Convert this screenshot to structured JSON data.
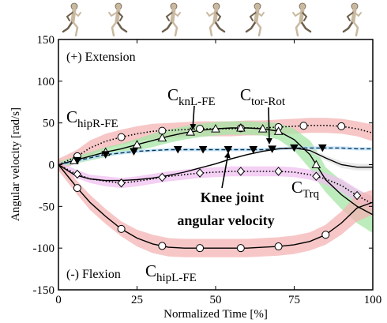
{
  "chart_data": {
    "type": "line",
    "xlabel": "Normalized Time [%]",
    "ylabel": "Angular velocity [rad/s]",
    "xlim": [
      0,
      100
    ],
    "ylim": [
      -150,
      150
    ],
    "xticks": [
      0,
      25,
      50,
      75,
      100
    ],
    "yticks": [
      -150,
      -100,
      -50,
      0,
      50,
      100,
      150
    ],
    "grid": false,
    "annotations": {
      "extension": "(+) Extension",
      "flexion": "(-) Flexion",
      "knee": [
        "Knee joint",
        "angular velocity"
      ]
    },
    "curve_labels": {
      "hipR": {
        "base": "C",
        "sub": "hipR-FE"
      },
      "knL": {
        "base": "C",
        "sub": "knL-FE"
      },
      "tor": {
        "base": "C",
        "sub": "tor-Rot"
      },
      "trq": {
        "base": "C",
        "sub": "Trq"
      },
      "hipL": {
        "base": "C",
        "sub": "hipL-FE"
      }
    },
    "series": [
      {
        "key": "hipR",
        "color": "#000000",
        "band": "#f4b4b4",
        "style": "dotted",
        "marker": "circle",
        "x": [
          0,
          6,
          10,
          15,
          20,
          25,
          30,
          35,
          40,
          45,
          50,
          55,
          60,
          65,
          70,
          75,
          80,
          85,
          90,
          95,
          100
        ],
        "y": [
          0,
          10,
          20,
          28,
          33,
          37,
          40,
          41,
          42,
          43,
          43,
          43,
          44,
          44,
          45,
          46,
          47,
          47,
          46,
          43,
          38
        ],
        "lower": [
          -7,
          2,
          11,
          19,
          24,
          28,
          31,
          32,
          33,
          34,
          34,
          34,
          35,
          35,
          36,
          37,
          38,
          38,
          37,
          34,
          28
        ],
        "upper": [
          7,
          18,
          29,
          37,
          42,
          46,
          49,
          50,
          51,
          52,
          52,
          52,
          53,
          53,
          54,
          55,
          56,
          56,
          55,
          52,
          48
        ],
        "markers_x": [
          6,
          20,
          33,
          45,
          58,
          70,
          78,
          90
        ]
      },
      {
        "key": "knL",
        "color": "#000000",
        "band": "#a6e6a6",
        "style": "solid",
        "marker": "triangle-up",
        "x": [
          0,
          5,
          10,
          15,
          20,
          25,
          30,
          35,
          40,
          45,
          50,
          55,
          60,
          65,
          70,
          75,
          80,
          82,
          85,
          90,
          95,
          100
        ],
        "y": [
          0,
          5,
          10,
          15,
          19,
          24,
          29,
          34,
          38,
          41,
          43,
          44,
          44,
          43,
          40,
          30,
          12,
          0,
          -18,
          -36,
          -50,
          -60
        ],
        "lower": [
          -4,
          1,
          5,
          9,
          13,
          17,
          21,
          26,
          30,
          33,
          35,
          36,
          36,
          35,
          30,
          17,
          -5,
          -18,
          -33,
          -53,
          -70,
          -82
        ],
        "upper": [
          4,
          9,
          15,
          21,
          25,
          31,
          37,
          42,
          46,
          49,
          51,
          52,
          52,
          51,
          50,
          43,
          29,
          18,
          -3,
          -19,
          -30,
          -38
        ],
        "markers_x": [
          5,
          15,
          25,
          33,
          42,
          50,
          58,
          65,
          70,
          82
        ]
      },
      {
        "key": "tor",
        "color": "#000000",
        "band": "#bfe0ff",
        "style": "dashed",
        "marker": "triangle-down",
        "x": [
          0,
          5,
          10,
          15,
          20,
          25,
          30,
          35,
          40,
          45,
          50,
          55,
          60,
          65,
          70,
          75,
          80,
          85,
          90,
          95,
          100
        ],
        "y": [
          0,
          4,
          8,
          12,
          14,
          16,
          17,
          18,
          18,
          18,
          18,
          18,
          18,
          18,
          19,
          20,
          20,
          20,
          20,
          19,
          19
        ],
        "lower": [
          -2,
          2,
          6,
          10,
          12,
          14,
          15,
          16,
          16,
          16,
          16,
          16,
          16,
          16,
          17,
          18,
          18,
          18,
          18,
          17,
          17
        ],
        "upper": [
          2,
          6,
          10,
          14,
          16,
          18,
          19,
          20,
          20,
          20,
          20,
          20,
          20,
          20,
          21,
          22,
          22,
          22,
          22,
          21,
          21
        ],
        "markers_x": [
          6,
          15,
          24,
          38,
          46,
          54,
          62,
          68,
          75,
          84
        ]
      },
      {
        "key": "trq",
        "color": "#000000",
        "band": "#e3e3e3",
        "style": "solid",
        "marker": "none",
        "x": [
          0,
          5,
          10,
          15,
          20,
          25,
          30,
          35,
          40,
          45,
          50,
          55,
          60,
          65,
          70,
          75,
          80,
          85,
          90,
          95,
          100
        ],
        "y": [
          0,
          -12,
          -17,
          -19,
          -19,
          -18,
          -16,
          -13,
          -9,
          -4,
          1,
          7,
          12,
          16,
          19,
          20,
          17,
          8,
          0,
          -3,
          -3
        ],
        "lower": [
          -1,
          -13,
          -18,
          -20,
          -20,
          -19,
          -17,
          -14,
          -10,
          -5,
          0,
          6,
          11,
          15,
          18,
          19,
          15,
          5,
          -4,
          -7,
          -7
        ],
        "upper": [
          1,
          -11,
          -16,
          -18,
          -18,
          -17,
          -15,
          -12,
          -8,
          -3,
          2,
          8,
          13,
          17,
          20,
          21,
          19,
          11,
          4,
          1,
          1
        ]
      },
      {
        "key": "knee",
        "color": "#000000",
        "band": "#f0c0f0",
        "style": "dotted",
        "marker": "diamond",
        "x": [
          0,
          5,
          10,
          15,
          20,
          25,
          30,
          35,
          40,
          45,
          50,
          55,
          60,
          65,
          70,
          75,
          80,
          85,
          90,
          95,
          100
        ],
        "y": [
          0,
          -10,
          -17,
          -20,
          -22,
          -20,
          -17,
          -14,
          -12,
          -10,
          -9,
          -8,
          -8,
          -8,
          -8,
          -9,
          -12,
          -17,
          -25,
          -37,
          -47
        ],
        "lower": [
          -4,
          -15,
          -22,
          -26,
          -28,
          -26,
          -23,
          -20,
          -18,
          -16,
          -15,
          -14,
          -14,
          -14,
          -14,
          -15,
          -18,
          -24,
          -33,
          -45,
          -55
        ],
        "upper": [
          4,
          -5,
          -12,
          -14,
          -16,
          -14,
          -11,
          -8,
          -6,
          -4,
          -3,
          -2,
          -2,
          -2,
          -2,
          -3,
          -6,
          -10,
          -17,
          -29,
          -39
        ],
        "markers_x": [
          6,
          20,
          33,
          45,
          58,
          70,
          82,
          95
        ]
      },
      {
        "key": "hipL",
        "color": "#000000",
        "band": "#f4b4b4",
        "style": "solid",
        "marker": "circle",
        "x": [
          0,
          6,
          10,
          15,
          20,
          25,
          30,
          35,
          40,
          45,
          50,
          55,
          60,
          65,
          70,
          75,
          80,
          85,
          90,
          95,
          100
        ],
        "y": [
          0,
          -28,
          -45,
          -62,
          -77,
          -88,
          -95,
          -99,
          -100,
          -100,
          -100,
          -100,
          -100,
          -99,
          -98,
          -96,
          -92,
          -84,
          -70,
          -52,
          -45
        ],
        "lower": [
          -7,
          -36,
          -54,
          -71,
          -86,
          -98,
          -106,
          -110,
          -111,
          -111,
          -111,
          -111,
          -111,
          -110,
          -109,
          -107,
          -103,
          -96,
          -84,
          -68,
          -60
        ],
        "upper": [
          7,
          -20,
          -36,
          -53,
          -68,
          -78,
          -84,
          -88,
          -89,
          -89,
          -89,
          -89,
          -89,
          -88,
          -87,
          -85,
          -81,
          -72,
          -56,
          -36,
          -30
        ],
        "markers_x": [
          6,
          20,
          33,
          45,
          58,
          70,
          85
        ]
      }
    ]
  }
}
